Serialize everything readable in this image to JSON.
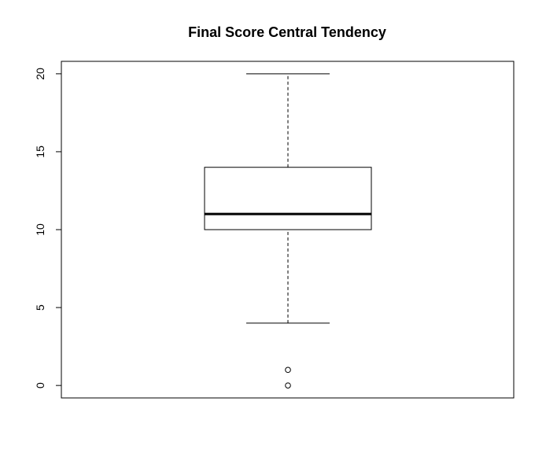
{
  "chart_data": {
    "type": "boxplot",
    "title": "Final Score Central Tendency",
    "xlabel": "",
    "ylabel": "",
    "ylim": [
      -0.8,
      20.8
    ],
    "y_ticks": [
      0,
      5,
      10,
      15,
      20
    ],
    "y_tick_labels": [
      "0",
      "5",
      "10",
      "15",
      "20"
    ],
    "grid": false,
    "box": {
      "whisker_low": 4,
      "q1": 10,
      "median": 11,
      "q3": 14,
      "whisker_high": 20,
      "outliers": [
        0,
        1
      ]
    }
  }
}
